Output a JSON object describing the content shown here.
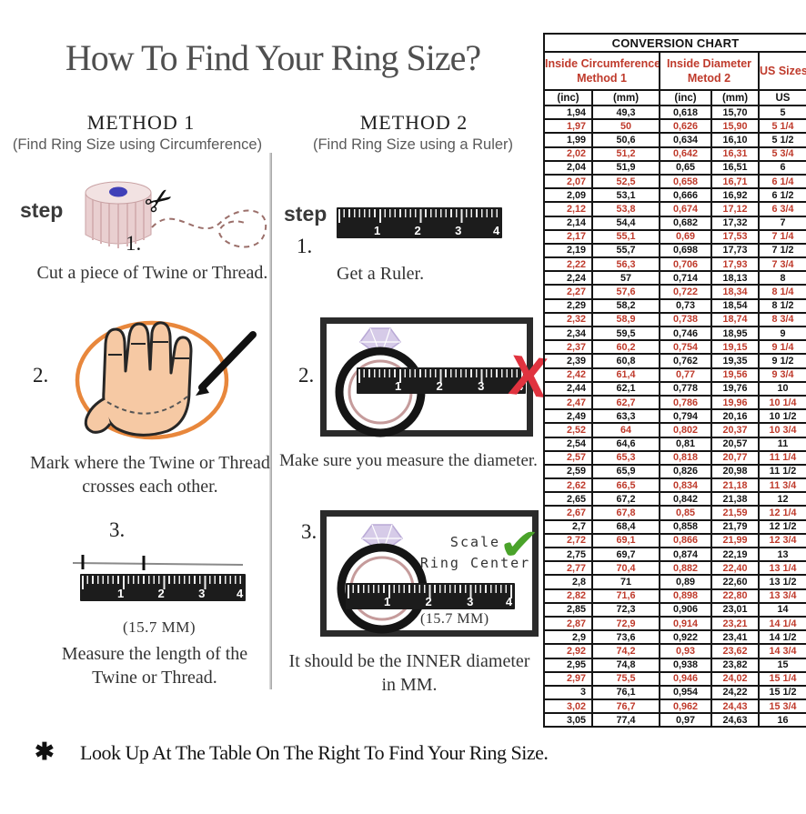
{
  "title": "How To Find Your Ring Size?",
  "ruler_numbers": [
    "1",
    "2",
    "3",
    "4"
  ],
  "icons": {
    "scissors": "✂",
    "check_mark": "✔",
    "x_mark": "X",
    "asterisk": "✱"
  },
  "colors": {
    "accent_red": "#bf3a2b",
    "title_gray": "#4f4f4f",
    "text_dark": "#333333",
    "orange_circle": "#e8873c",
    "hand_skin": "#f6c9a4",
    "ring_pink": "#c59b9b",
    "diamond_lavender": "#d6cbe8",
    "check_green": "#4aa32a",
    "x_red": "#e0333f",
    "ruler_black": "#1c1c1c"
  },
  "method1": {
    "heading": "METHOD 1",
    "subheading": "(Find Ring Size using Circumference)",
    "step_label": "step",
    "step1": {
      "num": "1.",
      "caption": "Cut a piece of Twine or Thread."
    },
    "step2": {
      "num": "2.",
      "caption_line1": "Mark where the Twine or Thread",
      "caption_line2": "crosses each other."
    },
    "step3": {
      "num": "3.",
      "measurement": "(15.7 MM)",
      "caption_line1": "Measure the length of the",
      "caption_line2": "Twine or Thread."
    }
  },
  "method2": {
    "heading": "METHOD 2",
    "subheading": "(Find Ring Size using a Ruler)",
    "step_label": "step",
    "step1": {
      "num": "1.",
      "caption": "Get a Ruler."
    },
    "step2": {
      "num": "2.",
      "caption": "Make sure you measure the diameter."
    },
    "step3": {
      "num": "3.",
      "scale_line1": "Scale",
      "scale_line2": "Ring Center",
      "measurement": "(15.7 MM)",
      "caption_line1": "It should be the INNER diameter",
      "caption_line2": "in MM."
    }
  },
  "footnote": "Look Up At The Table On The Right To Find Your Ring Size.",
  "table": {
    "title": "CONVERSION CHART",
    "group_headers": [
      {
        "line1": "Inside Circumference",
        "line2": "Method 1"
      },
      {
        "line1": "Inside Diameter",
        "line2": "Metod 2"
      },
      {
        "line1": "US Sizes",
        "line2": ""
      }
    ],
    "column_headers": [
      "(inc)",
      "(mm)",
      "(inc)",
      "(mm)",
      "US"
    ],
    "rows": [
      [
        "1,94",
        "49,3",
        "0,618",
        "15,70",
        "5"
      ],
      [
        "1,97",
        "50",
        "0,626",
        "15,90",
        "5 1/4"
      ],
      [
        "1,99",
        "50,6",
        "0,634",
        "16,10",
        "5 1/2"
      ],
      [
        "2,02",
        "51,2",
        "0,642",
        "16,31",
        "5 3/4"
      ],
      [
        "2,04",
        "51,9",
        "0,65",
        "16,51",
        "6"
      ],
      [
        "2,07",
        "52,5",
        "0,658",
        "16,71",
        "6 1/4"
      ],
      [
        "2,09",
        "53,1",
        "0,666",
        "16,92",
        "6 1/2"
      ],
      [
        "2,12",
        "53,8",
        "0,674",
        "17,12",
        "6 3/4"
      ],
      [
        "2,14",
        "54,4",
        "0,682",
        "17,32",
        "7"
      ],
      [
        "2,17",
        "55,1",
        "0,69",
        "17,53",
        "7 1/4"
      ],
      [
        "2,19",
        "55,7",
        "0,698",
        "17,73",
        "7 1/2"
      ],
      [
        "2,22",
        "56,3",
        "0,706",
        "17,93",
        "7 3/4"
      ],
      [
        "2,24",
        "57",
        "0,714",
        "18,13",
        "8"
      ],
      [
        "2,27",
        "57,6",
        "0,722",
        "18,34",
        "8 1/4"
      ],
      [
        "2,29",
        "58,2",
        "0,73",
        "18,54",
        "8 1/2"
      ],
      [
        "2,32",
        "58,9",
        "0,738",
        "18,74",
        "8 3/4"
      ],
      [
        "2,34",
        "59,5",
        "0,746",
        "18,95",
        "9"
      ],
      [
        "2,37",
        "60,2",
        "0,754",
        "19,15",
        "9 1/4"
      ],
      [
        "2,39",
        "60,8",
        "0,762",
        "19,35",
        "9 1/2"
      ],
      [
        "2,42",
        "61,4",
        "0,77",
        "19,56",
        "9 3/4"
      ],
      [
        "2,44",
        "62,1",
        "0,778",
        "19,76",
        "10"
      ],
      [
        "2,47",
        "62,7",
        "0,786",
        "19,96",
        "10 1/4"
      ],
      [
        "2,49",
        "63,3",
        "0,794",
        "20,16",
        "10 1/2"
      ],
      [
        "2,52",
        "64",
        "0,802",
        "20,37",
        "10 3/4"
      ],
      [
        "2,54",
        "64,6",
        "0,81",
        "20,57",
        "11"
      ],
      [
        "2,57",
        "65,3",
        "0,818",
        "20,77",
        "11 1/4"
      ],
      [
        "2,59",
        "65,9",
        "0,826",
        "20,98",
        "11 1/2"
      ],
      [
        "2,62",
        "66,5",
        "0,834",
        "21,18",
        "11 3/4"
      ],
      [
        "2,65",
        "67,2",
        "0,842",
        "21,38",
        "12"
      ],
      [
        "2,67",
        "67,8",
        "0,85",
        "21,59",
        "12 1/4"
      ],
      [
        "2,7",
        "68,4",
        "0,858",
        "21,79",
        "12 1/2"
      ],
      [
        "2,72",
        "69,1",
        "0,866",
        "21,99",
        "12 3/4"
      ],
      [
        "2,75",
        "69,7",
        "0,874",
        "22,19",
        "13"
      ],
      [
        "2,77",
        "70,4",
        "0,882",
        "22,40",
        "13 1/4"
      ],
      [
        "2,8",
        "71",
        "0,89",
        "22,60",
        "13 1/2"
      ],
      [
        "2,82",
        "71,6",
        "0,898",
        "22,80",
        "13 3/4"
      ],
      [
        "2,85",
        "72,3",
        "0,906",
        "23,01",
        "14"
      ],
      [
        "2,87",
        "72,9",
        "0,914",
        "23,21",
        "14 1/4"
      ],
      [
        "2,9",
        "73,6",
        "0,922",
        "23,41",
        "14 1/2"
      ],
      [
        "2,92",
        "74,2",
        "0,93",
        "23,62",
        "14 3/4"
      ],
      [
        "2,95",
        "74,8",
        "0,938",
        "23,82",
        "15"
      ],
      [
        "2,97",
        "75,5",
        "0,946",
        "24,02",
        "15 1/4"
      ],
      [
        "3",
        "76,1",
        "0,954",
        "24,22",
        "15 1/2"
      ],
      [
        "3,02",
        "76,7",
        "0,962",
        "24,43",
        "15 3/4"
      ],
      [
        "3,05",
        "77,4",
        "0,97",
        "24,63",
        "16"
      ]
    ]
  }
}
